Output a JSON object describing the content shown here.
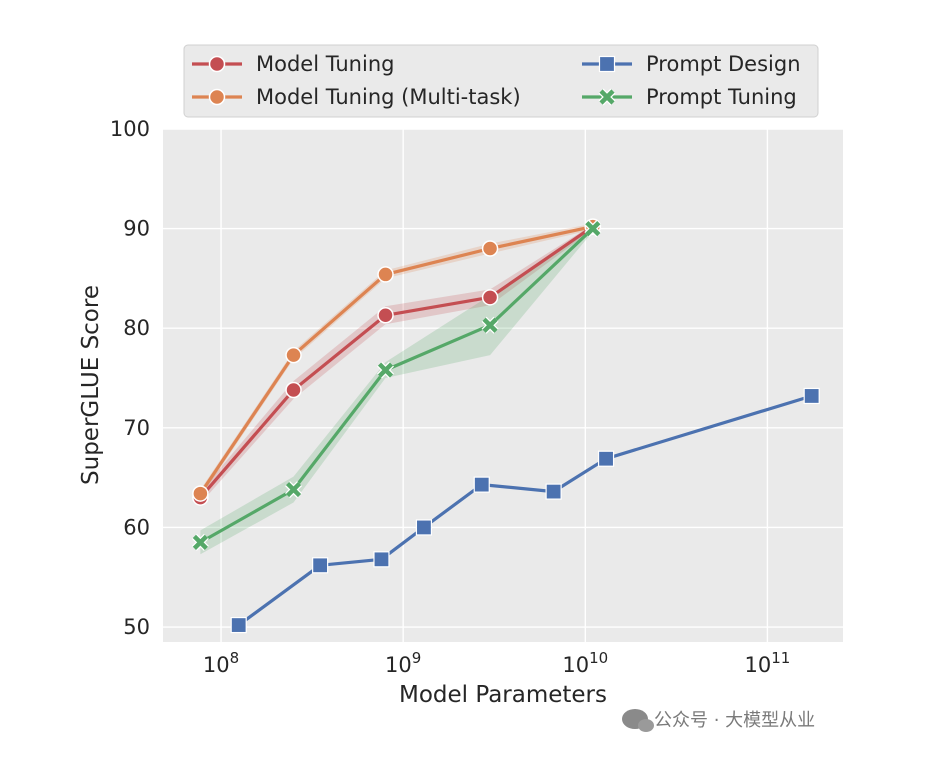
{
  "chart_data": {
    "type": "line",
    "xscale": "log",
    "xlabel": "Model Parameters",
    "ylabel": "SuperGLUE Score",
    "xlim": [
      48000000,
      260000000000
    ],
    "ylim": [
      48.5,
      100
    ],
    "yticks": [
      50,
      60,
      70,
      80,
      90,
      100
    ],
    "xticks": [
      {
        "value": 100000000,
        "base": "10",
        "exp": "8"
      },
      {
        "value": 1000000000,
        "base": "10",
        "exp": "9"
      },
      {
        "value": 10000000000,
        "base": "10",
        "exp": "10"
      },
      {
        "value": 100000000000,
        "base": "10",
        "exp": "11"
      }
    ],
    "grid": true,
    "legend_position": "top",
    "series": [
      {
        "name": "Model Tuning",
        "color": "#c44e52",
        "marker": "circle",
        "x": [
          77000000,
          250000000,
          800000000,
          3000000000,
          11000000000
        ],
        "y": [
          63.0,
          73.8,
          81.3,
          83.1,
          90.2
        ],
        "band_low": [
          62.4,
          72.9,
          80.4,
          82.3,
          89.9
        ],
        "band_high": [
          63.6,
          74.7,
          82.2,
          83.9,
          90.4
        ]
      },
      {
        "name": "Model Tuning (Multi-task)",
        "color": "#dd8452",
        "marker": "circle",
        "x": [
          77000000,
          250000000,
          800000000,
          3000000000,
          11000000000
        ],
        "y": [
          63.4,
          77.3,
          85.4,
          88.0,
          90.2
        ],
        "band_low": [
          63.0,
          76.9,
          85.0,
          87.5,
          89.9
        ],
        "band_high": [
          63.8,
          77.7,
          85.8,
          88.5,
          90.5
        ]
      },
      {
        "name": "Prompt Design",
        "color": "#4c72b0",
        "marker": "square",
        "x": [
          125000000,
          350000000,
          760000000,
          1300000000,
          2700000000,
          6700000000,
          13000000000,
          175000000000
        ],
        "y": [
          50.2,
          56.2,
          56.8,
          60.0,
          64.3,
          63.6,
          66.9,
          73.2
        ]
      },
      {
        "name": "Prompt Tuning",
        "color": "#55a868",
        "marker": "x",
        "x": [
          77000000,
          250000000,
          800000000,
          3000000000,
          11000000000
        ],
        "y": [
          58.5,
          63.8,
          75.8,
          80.3,
          90.0
        ],
        "band_low": [
          57.3,
          62.5,
          75.0,
          77.3,
          89.7
        ],
        "band_high": [
          59.7,
          65.1,
          76.6,
          83.3,
          90.3
        ]
      }
    ]
  },
  "watermark": "公众号 · 大模型从业"
}
